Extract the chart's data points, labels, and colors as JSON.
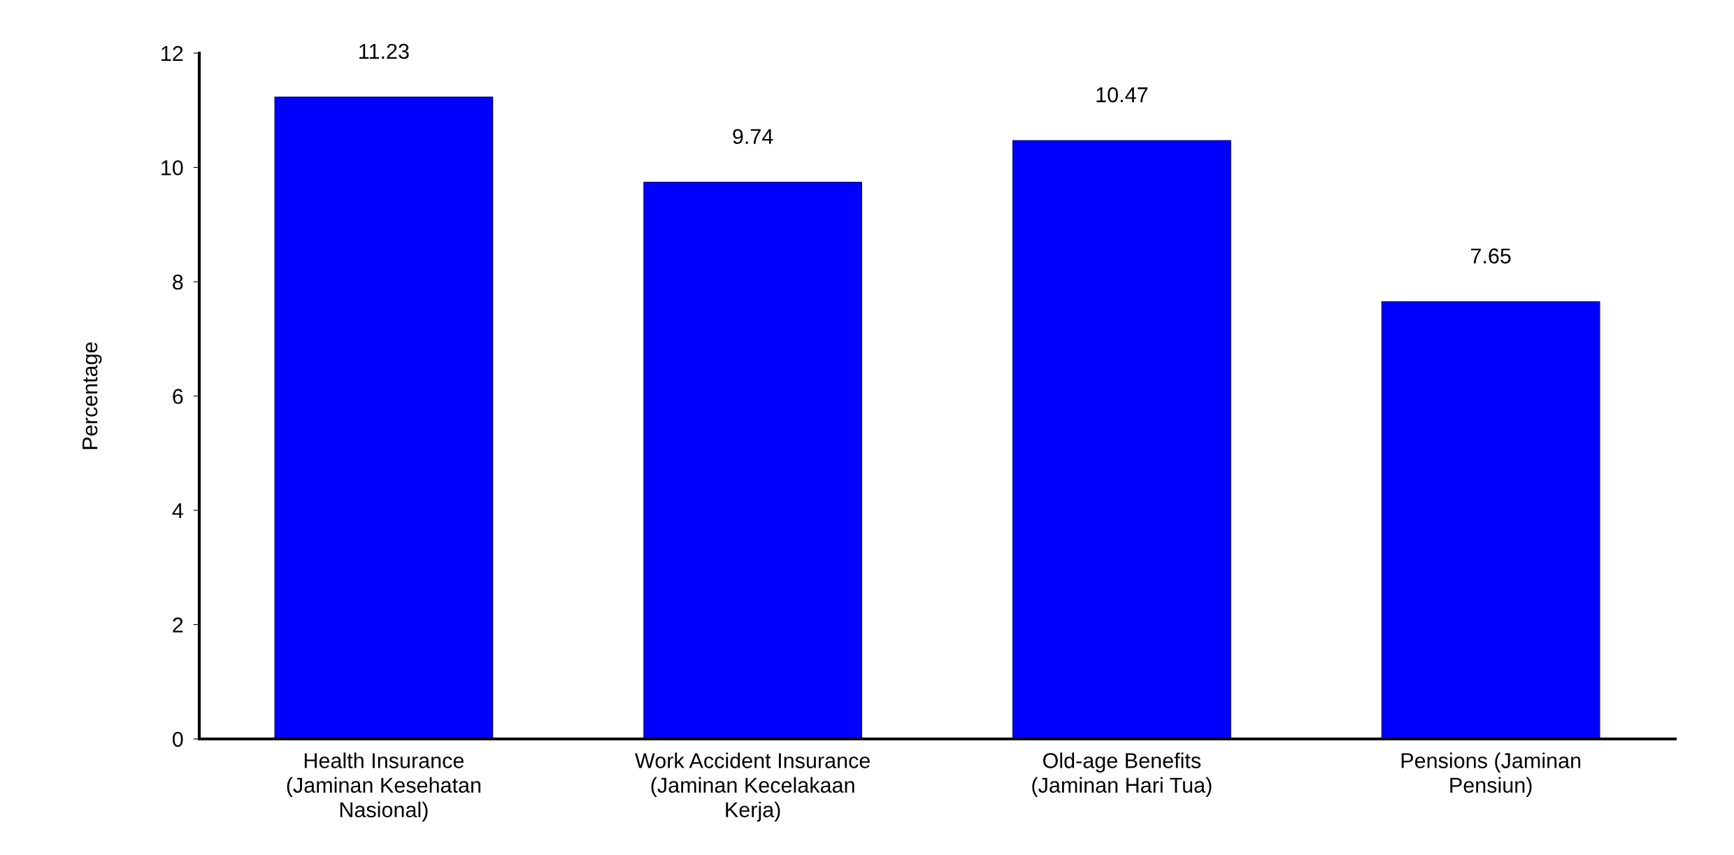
{
  "chart_data": {
    "type": "bar",
    "ylabel": "Percentage",
    "categories": [
      "Health Insurance\n(Jaminan Kesehatan\nNasional)",
      "Work Accident Insurance\n(Jaminan Kecelakaan\nKerja)",
      "Old-age Benefits\n(Jaminan Hari Tua)",
      "Pensions (Jaminan\nPensiun)"
    ],
    "values": [
      11.23,
      9.74,
      10.47,
      7.65
    ],
    "color": "#0000ff",
    "ylim": [
      0,
      12
    ],
    "yticks": [
      0,
      2,
      4,
      6,
      8,
      10,
      12
    ],
    "grid": false,
    "data_labels": true
  }
}
